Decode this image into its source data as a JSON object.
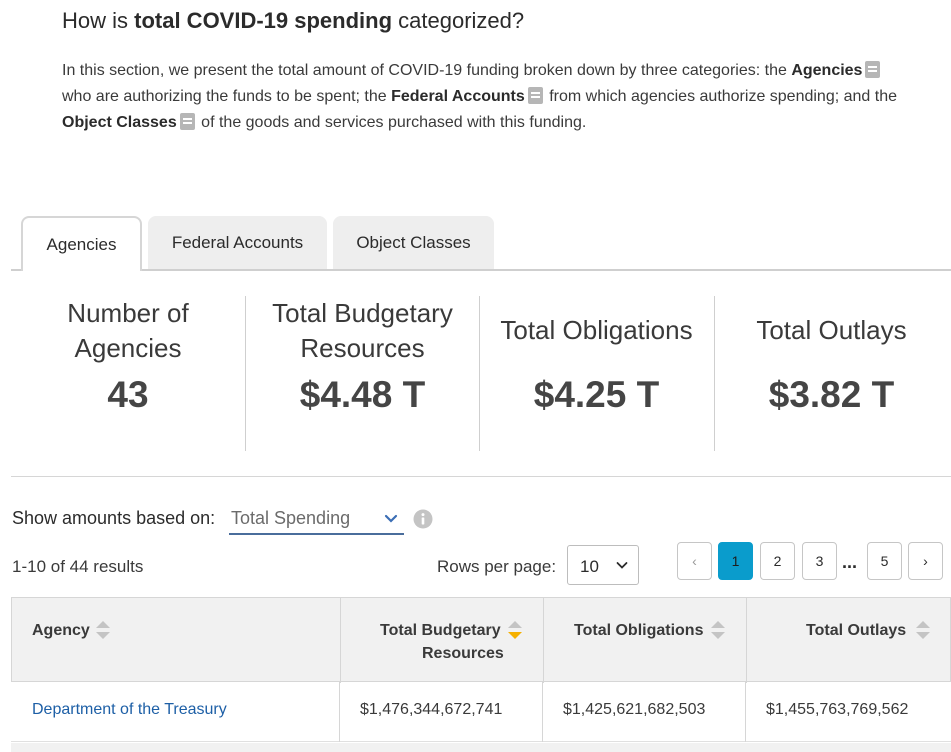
{
  "heading": {
    "prefix": "How is ",
    "bold": "total COVID-19 spending",
    "suffix": " categorized?"
  },
  "intro": {
    "p1": "In this section, we present the total amount of COVID-19 funding broken down by three categories: the ",
    "t1": "Agencies",
    "p2": " who are authorizing the funds to be spent; the ",
    "t2": "Federal Accounts",
    "p3": " from which agencies authorize spending; and the ",
    "t3": "Object Classes",
    "p4": " of the goods and services purchased with this funding."
  },
  "tabs": [
    {
      "label": "Agencies",
      "active": true
    },
    {
      "label": "Federal Accounts",
      "active": false
    },
    {
      "label": "Object Classes",
      "active": false
    }
  ],
  "summary": [
    {
      "label_line1": "Number of",
      "label_line2": "Agencies",
      "value": "43"
    },
    {
      "label_line1": "Total Budgetary",
      "label_line2": "Resources",
      "value": "$4.48 T"
    },
    {
      "label_line1": "Total Obligations",
      "label_line2": "",
      "value": "$4.25 T"
    },
    {
      "label_line1": "Total Outlays",
      "label_line2": "",
      "value": "$3.82 T"
    }
  ],
  "controls": {
    "show_label": "Show amounts based on:",
    "spending_select": "Total Spending",
    "results": "1-10 of 44 results",
    "rows_label": "Rows per page:",
    "rows_value": "10"
  },
  "pagination": {
    "prev": "‹",
    "pages": [
      "1",
      "2",
      "3"
    ],
    "ellipsis": "...",
    "last": "5",
    "next": "›",
    "current": "1"
  },
  "table": {
    "columns": [
      {
        "line1": "Agency",
        "line2": "",
        "sort": "none"
      },
      {
        "line1": "Total Budgetary",
        "line2": "Resources",
        "sort": "descending"
      },
      {
        "line1": "Total Obligations",
        "line2": "",
        "sort": "none"
      },
      {
        "line1": "Total Outlays",
        "line2": "",
        "sort": "none"
      }
    ],
    "rows": [
      {
        "agency": "Department of the Treasury",
        "budgetary": "$1,476,344,672,741",
        "obligations": "$1,425,621,682,503",
        "outlays": "$1,455,763,769,562"
      }
    ]
  },
  "colors": {
    "accent": "#0a9ccc",
    "link": "#1d5fa6",
    "sort_active": "#f5b000",
    "sort_inactive": "#c4c4c4"
  },
  "icons": {
    "glossary": "glossary-book-icon",
    "info": "info-icon",
    "dropdown": "chevron-down-icon",
    "sort": "sort-icon"
  }
}
